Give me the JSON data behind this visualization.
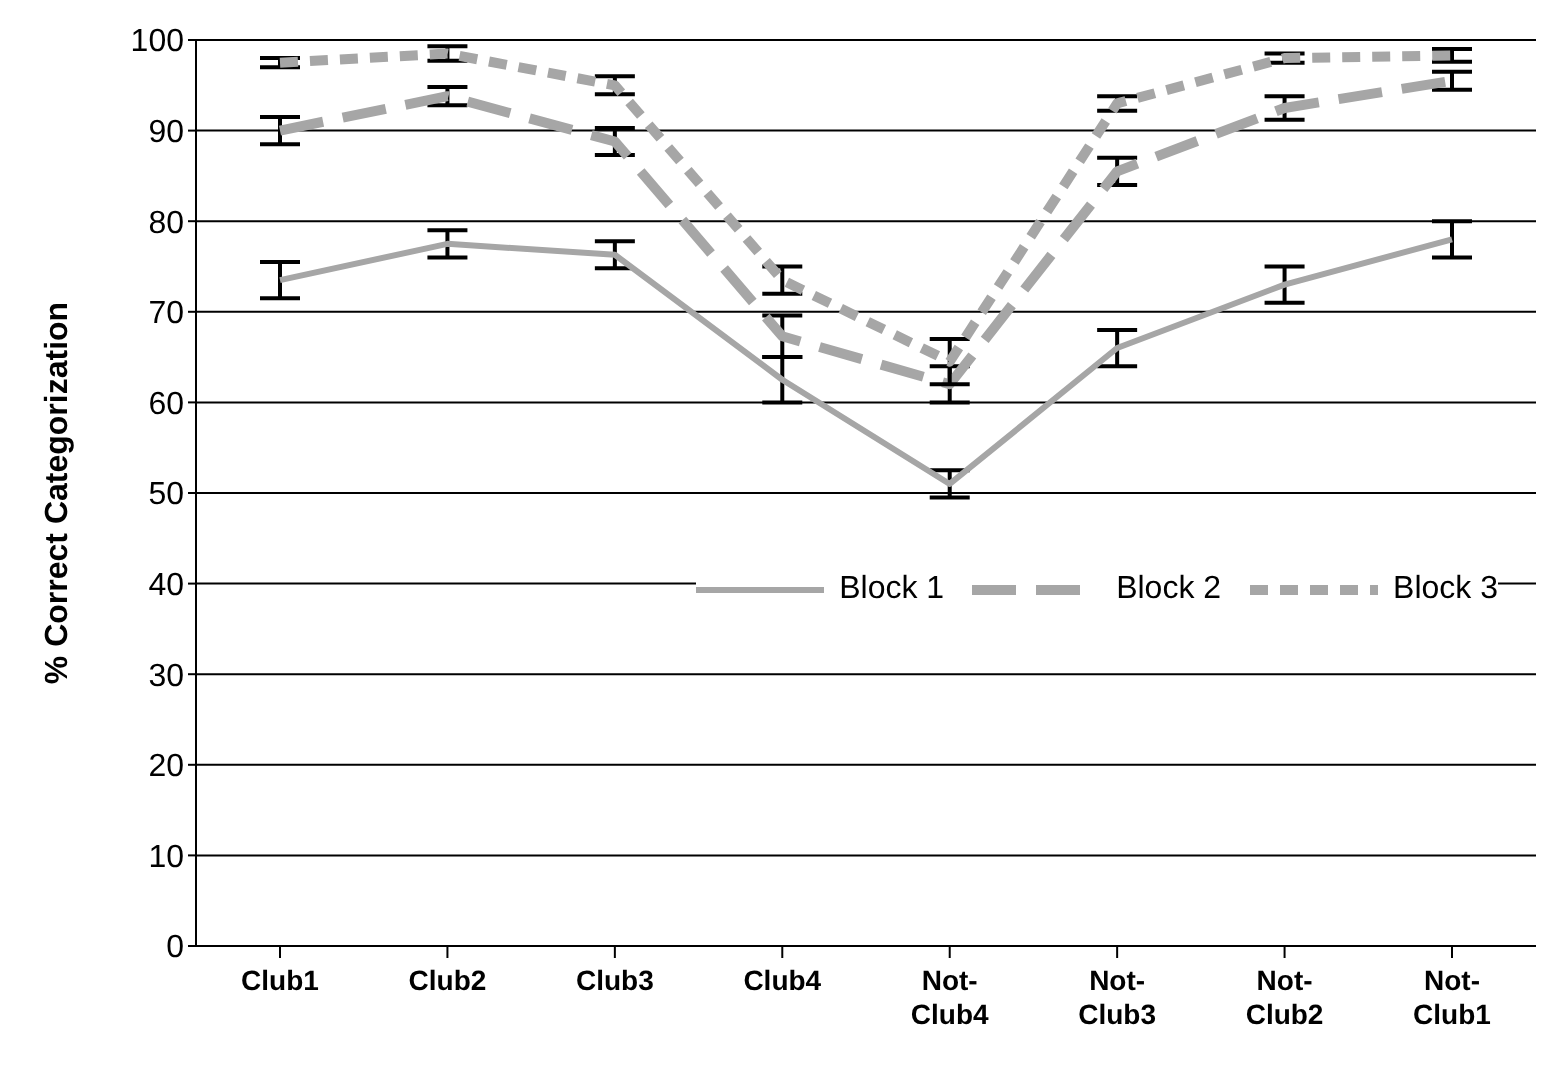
{
  "chart_data": {
    "type": "line",
    "ylabel": "% Correct Categorization",
    "categories": [
      "Club1",
      "Club2",
      "Club3",
      "Club4",
      "Not-Club4",
      "Not-Club3",
      "Not-Club2",
      "Not-Club1"
    ],
    "series": [
      {
        "name": "Block 1",
        "color": "#a6a6a6",
        "line_style": "solid",
        "values": [
          73.5,
          77.5,
          76.3,
          62.5,
          51,
          66,
          73,
          78
        ],
        "errors": [
          2,
          1.5,
          1.5,
          2.5,
          1.5,
          2,
          2,
          2
        ]
      },
      {
        "name": "Block 2",
        "color": "#a6a6a6",
        "line_style": "dashed",
        "values": [
          90,
          93.8,
          88.8,
          67.3,
          62,
          85.5,
          92.5,
          95.5
        ],
        "errors": [
          1.5,
          1,
          1.5,
          2.3,
          2,
          1.5,
          1.3,
          1
        ]
      },
      {
        "name": "Block 3",
        "color": "#a6a6a6",
        "line_style": "dotted",
        "values": [
          97.5,
          98.5,
          95,
          73.5,
          64.5,
          93,
          98,
          98.3
        ],
        "errors": [
          0.5,
          0.8,
          1,
          1.5,
          2.5,
          0.8,
          0.5,
          0.7
        ]
      }
    ],
    "ylim": [
      0,
      100
    ],
    "yticks": [
      0,
      10,
      20,
      30,
      40,
      50,
      60,
      70,
      80,
      90,
      100
    ],
    "grid": "y",
    "legend": "right",
    "marker": "none"
  }
}
